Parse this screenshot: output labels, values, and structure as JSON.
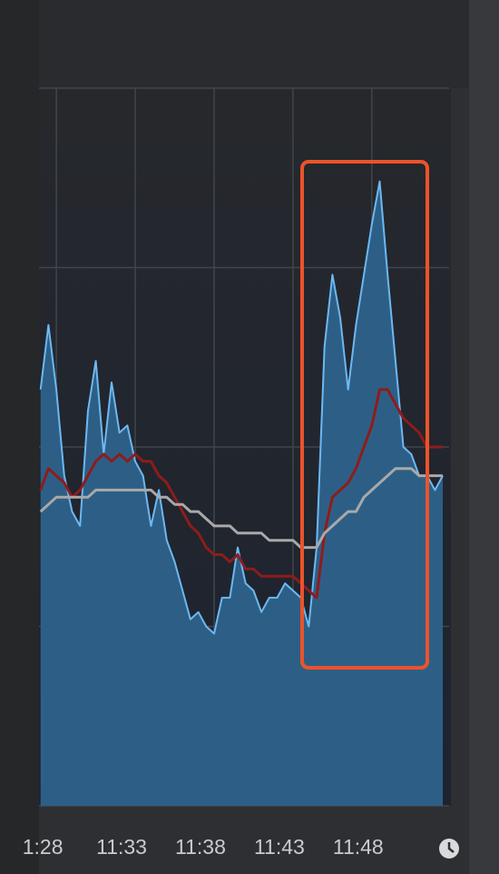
{
  "chart_data": {
    "type": "line",
    "x": [
      27,
      27.5,
      28,
      28.5,
      29,
      29.5,
      30,
      30.5,
      31,
      31.5,
      32,
      32.5,
      33,
      33.5,
      34,
      34.5,
      35,
      35.5,
      36,
      36.5,
      37,
      37.5,
      38,
      38.5,
      39,
      39.5,
      40,
      40.5,
      41,
      41.5,
      42,
      42.5,
      43,
      43.5,
      44,
      44.5,
      45,
      45.5,
      46,
      46.5,
      47,
      47.5,
      48,
      48.5,
      49,
      49.5,
      50,
      50.5,
      51,
      51.5,
      52,
      52.5
    ],
    "series": [
      {
        "color": "#6cb8f2",
        "fill": "#2d5f86",
        "values": [
          58,
          67,
          58,
          46,
          41,
          39,
          55,
          62,
          49,
          59,
          52,
          53,
          48,
          46,
          39,
          44,
          37,
          34,
          30,
          26,
          27,
          25,
          24,
          29,
          29,
          36,
          31,
          30,
          27,
          29,
          29,
          31,
          30,
          29,
          25,
          36,
          64,
          74,
          68,
          58,
          67,
          74,
          81,
          87,
          74,
          62,
          50,
          49,
          46,
          46,
          44,
          46
        ]
      },
      {
        "color": "#8e1c1c",
        "values": [
          44,
          47,
          46,
          45,
          43,
          44,
          46,
          48,
          49,
          48,
          49,
          48,
          49,
          48,
          48,
          46,
          45,
          43,
          41,
          39,
          38,
          36,
          35,
          35,
          34,
          35,
          33,
          33,
          32,
          32,
          32,
          32,
          32,
          31,
          30,
          29,
          38,
          43,
          44,
          45,
          47,
          50,
          53,
          58,
          58,
          56,
          54,
          53,
          52,
          50,
          50,
          50
        ]
      },
      {
        "color": "#a9a9a9",
        "values": [
          41,
          42,
          43,
          43,
          43,
          43,
          43,
          44,
          44,
          44,
          44,
          44,
          44,
          44,
          44,
          43,
          43,
          42,
          42,
          41,
          41,
          40,
          39,
          39,
          39,
          38,
          38,
          38,
          38,
          37,
          37,
          37,
          37,
          36,
          36,
          36,
          38,
          39,
          40,
          41,
          41,
          43,
          44,
          45,
          46,
          47,
          47,
          47,
          46,
          46,
          46,
          46
        ]
      }
    ],
    "xlim": [
      26.9,
      52.9
    ],
    "xticks": [
      {
        "value": 28,
        "label": "1:28"
      },
      {
        "value": 33,
        "label": "11:33"
      },
      {
        "value": 38,
        "label": "11:38"
      },
      {
        "value": 43,
        "label": "11:43"
      },
      {
        "value": 48,
        "label": "11:48"
      }
    ],
    "ylim": [
      0,
      100
    ],
    "yticks": [
      0,
      25,
      50,
      75,
      100
    ],
    "grid": true
  }
}
